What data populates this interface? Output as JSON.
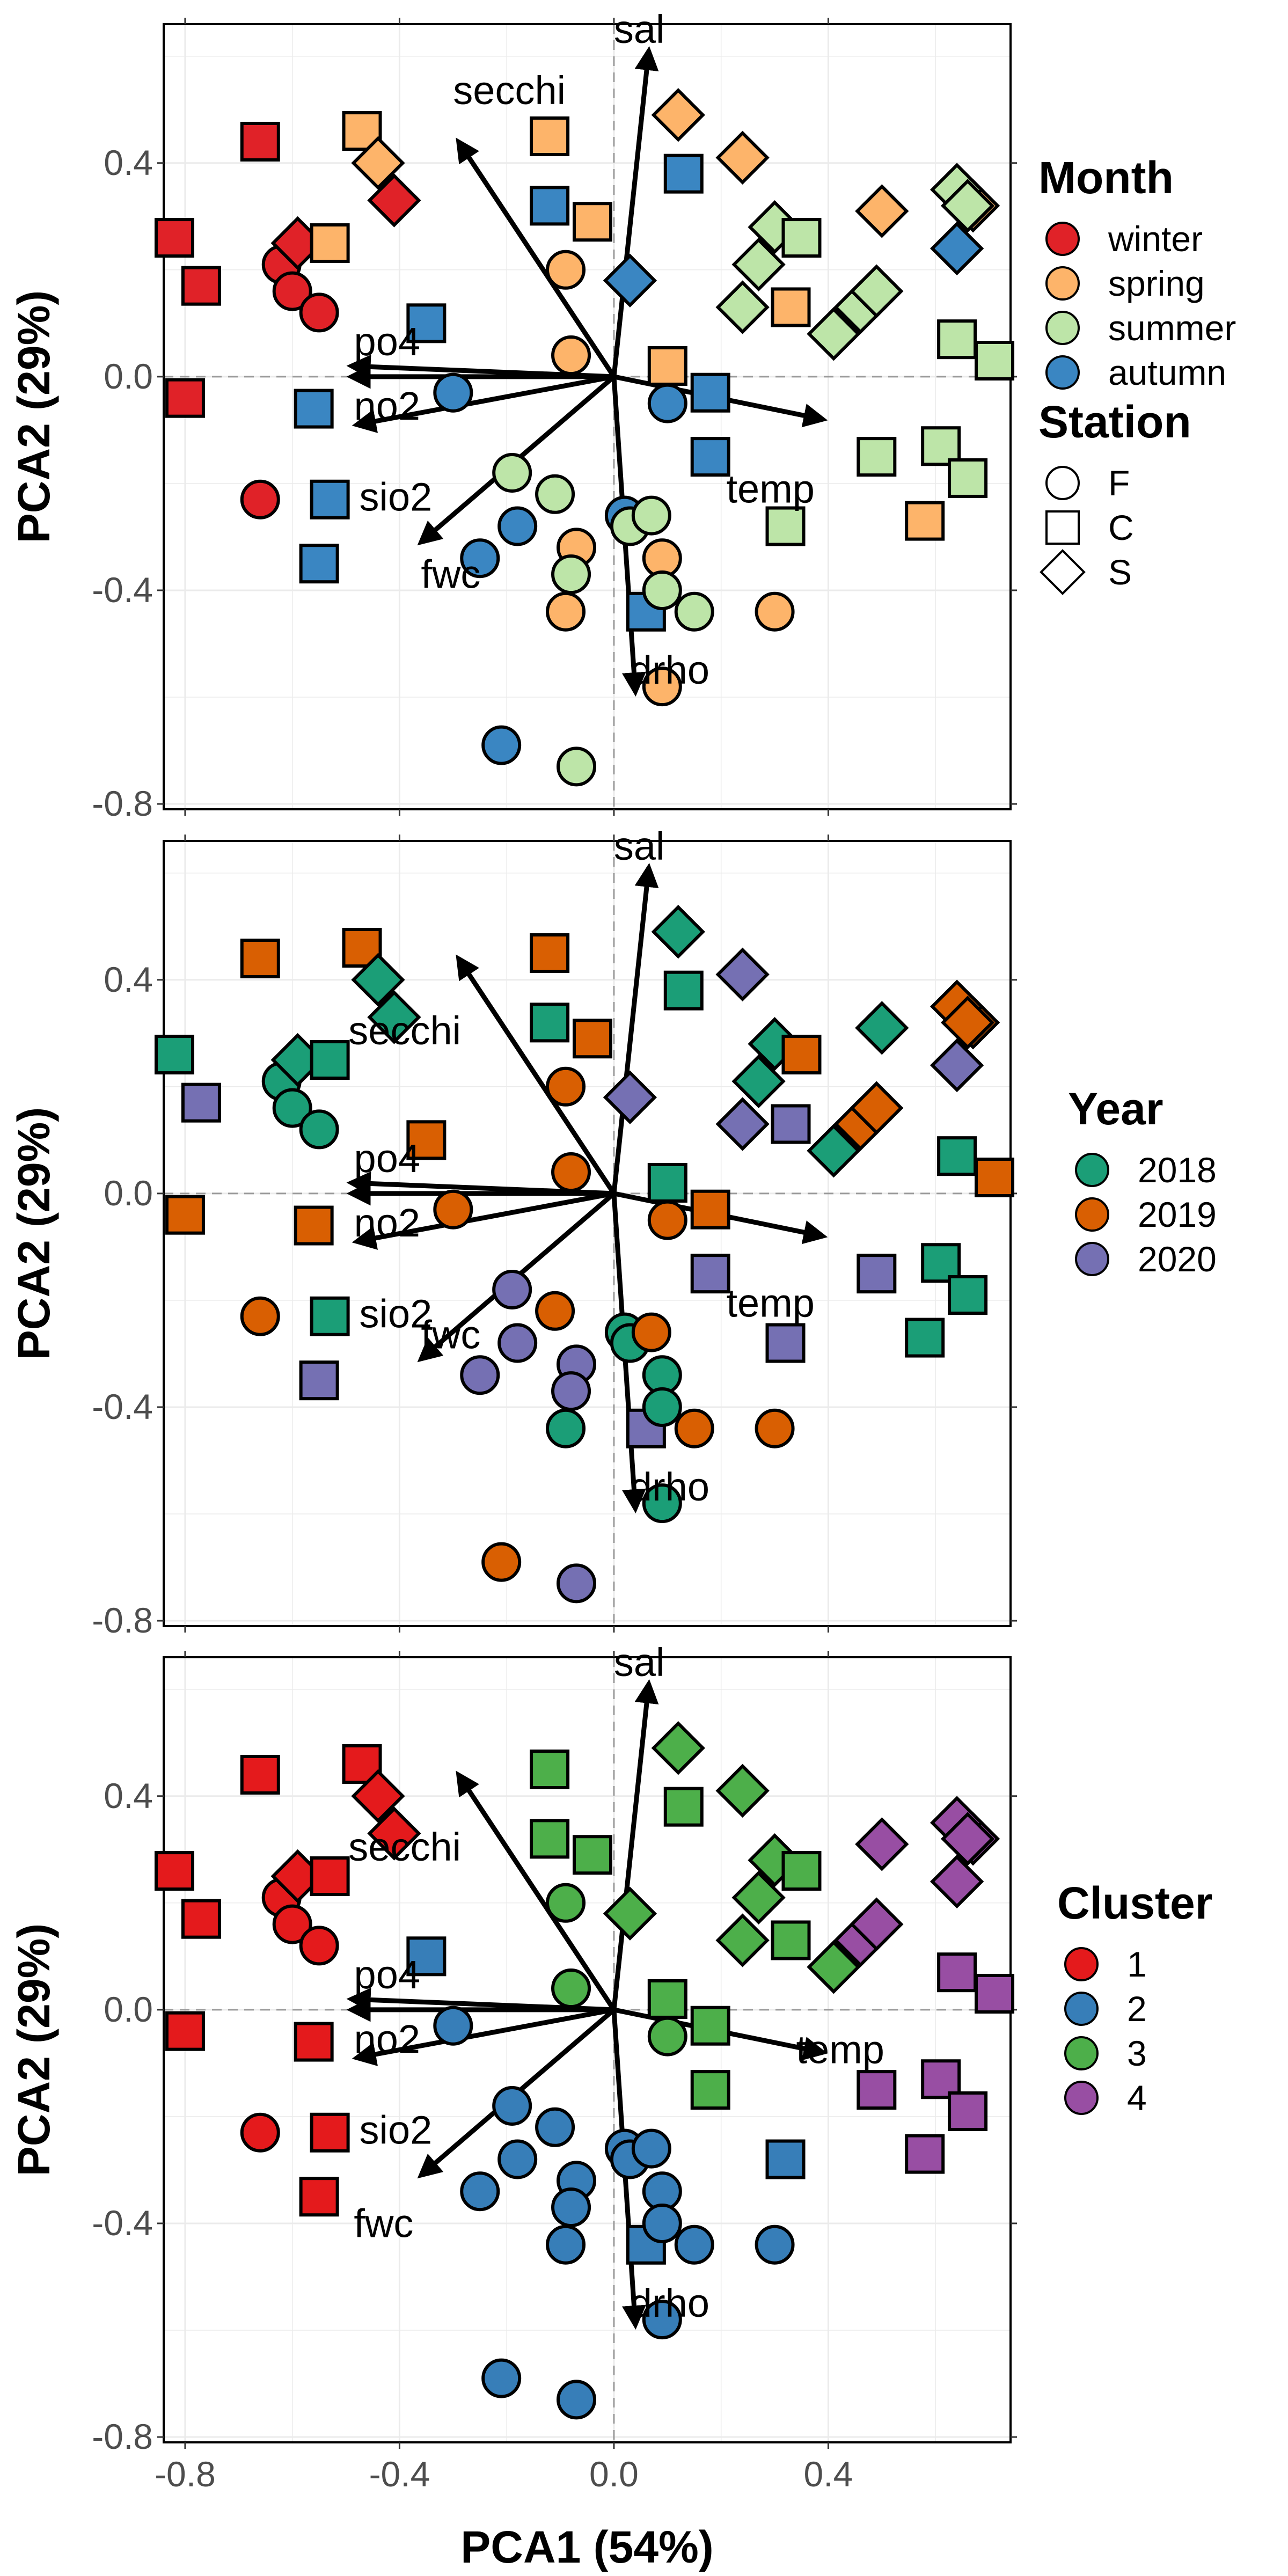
{
  "chart_data": {
    "type": "scatter",
    "xlabel": "PCA1 (54%)",
    "ylabel": "PCA2 (29%)",
    "xlim": [
      -0.84,
      0.74
    ],
    "ylim": [
      -0.81,
      0.66
    ],
    "x_ticks": [
      -0.8,
      -0.4,
      0.0,
      0.4
    ],
    "x_tick_labels": [
      "-0.8",
      "-0.4",
      "0.0",
      "0.4"
    ],
    "y_ticks": [
      -0.8,
      -0.4,
      0.0,
      0.4
    ],
    "y_tick_labels": [
      "-0.8",
      "-0.4",
      "0.0",
      "0.4"
    ],
    "grid": true,
    "reference_lines": [
      0,
      0
    ],
    "stations": [
      "F",
      "C",
      "S"
    ],
    "station_shapes": {
      "F": "circle",
      "C": "square",
      "S": "diamond"
    },
    "loadings": [
      {
        "label": "sal",
        "x": 0.065,
        "y": 0.61
      },
      {
        "label": "secchi",
        "x": -0.29,
        "y": 0.44
      },
      {
        "label": "po4",
        "x": -0.49,
        "y": 0.02
      },
      {
        "label": "no2",
        "x": -0.49,
        "y": 0.0
      },
      {
        "label": "sio2",
        "x": -0.48,
        "y": -0.09
      },
      {
        "label": "fwc",
        "x": -0.36,
        "y": -0.31
      },
      {
        "label": "temp",
        "x": 0.39,
        "y": -0.08
      },
      {
        "label": "drho",
        "x": 0.04,
        "y": -0.59
      }
    ],
    "points": [
      {
        "x": -0.82,
        "y": 0.26,
        "st": "C",
        "m": "winter",
        "yr": "2018",
        "cl": "1"
      },
      {
        "x": -0.66,
        "y": 0.44,
        "st": "C",
        "m": "winter",
        "yr": "2019",
        "cl": "1"
      },
      {
        "x": -0.77,
        "y": 0.17,
        "st": "C",
        "m": "winter",
        "yr": "2020",
        "cl": "1"
      },
      {
        "x": -0.8,
        "y": -0.04,
        "st": "C",
        "m": "winter",
        "yr": "2019",
        "cl": "1"
      },
      {
        "x": -0.62,
        "y": 0.21,
        "st": "F",
        "m": "winter",
        "yr": "2018",
        "cl": "1"
      },
      {
        "x": -0.59,
        "y": 0.25,
        "st": "S",
        "m": "winter",
        "yr": "2018",
        "cl": "1"
      },
      {
        "x": -0.6,
        "y": 0.16,
        "st": "F",
        "m": "winter",
        "yr": "2018",
        "cl": "1"
      },
      {
        "x": -0.55,
        "y": 0.12,
        "st": "F",
        "m": "winter",
        "yr": "2018",
        "cl": "1"
      },
      {
        "x": -0.66,
        "y": -0.23,
        "st": "F",
        "m": "winter",
        "yr": "2019",
        "cl": "1"
      },
      {
        "x": -0.41,
        "y": 0.33,
        "st": "S",
        "m": "winter",
        "yr": "2018",
        "cl": "1"
      },
      {
        "x": -0.47,
        "y": 0.46,
        "st": "C",
        "m": "spring",
        "yr": "2019",
        "cl": "1"
      },
      {
        "x": -0.44,
        "y": 0.4,
        "st": "S",
        "m": "spring",
        "yr": "2018",
        "cl": "1"
      },
      {
        "x": -0.53,
        "y": 0.25,
        "st": "C",
        "m": "spring",
        "yr": "2018",
        "cl": "1"
      },
      {
        "x": -0.12,
        "y": 0.45,
        "st": "C",
        "m": "spring",
        "yr": "2019",
        "cl": "3"
      },
      {
        "x": -0.04,
        "y": 0.29,
        "st": "C",
        "m": "spring",
        "yr": "2019",
        "cl": "3"
      },
      {
        "x": -0.09,
        "y": 0.2,
        "st": "F",
        "m": "spring",
        "yr": "2019",
        "cl": "3"
      },
      {
        "x": -0.08,
        "y": 0.04,
        "st": "F",
        "m": "spring",
        "yr": "2019",
        "cl": "3"
      },
      {
        "x": 0.12,
        "y": 0.49,
        "st": "S",
        "m": "spring",
        "yr": "2018",
        "cl": "3"
      },
      {
        "x": 0.24,
        "y": 0.41,
        "st": "S",
        "m": "spring",
        "yr": "2020",
        "cl": "3"
      },
      {
        "x": 0.1,
        "y": 0.02,
        "st": "C",
        "m": "spring",
        "yr": "2018",
        "cl": "3"
      },
      {
        "x": 0.33,
        "y": 0.13,
        "st": "C",
        "m": "spring",
        "yr": "2020",
        "cl": "3"
      },
      {
        "x": -0.07,
        "y": -0.32,
        "st": "F",
        "m": "spring",
        "yr": "2020",
        "cl": "2"
      },
      {
        "x": 0.09,
        "y": -0.34,
        "st": "F",
        "m": "spring",
        "yr": "2018",
        "cl": "2"
      },
      {
        "x": -0.09,
        "y": -0.44,
        "st": "F",
        "m": "spring",
        "yr": "2018",
        "cl": "2"
      },
      {
        "x": 0.09,
        "y": -0.58,
        "st": "F",
        "m": "spring",
        "yr": "2018",
        "cl": "2"
      },
      {
        "x": 0.3,
        "y": -0.44,
        "st": "F",
        "m": "spring",
        "yr": "2019",
        "cl": "2"
      },
      {
        "x": 0.5,
        "y": 0.31,
        "st": "S",
        "m": "spring",
        "yr": "2018",
        "cl": "4"
      },
      {
        "x": 0.58,
        "y": -0.27,
        "st": "C",
        "m": "spring",
        "yr": "2018",
        "cl": "4"
      },
      {
        "x": 0.67,
        "y": 0.32,
        "st": "S",
        "m": "spring",
        "yr": "2019",
        "cl": "4"
      },
      {
        "x": -0.35,
        "y": 0.1,
        "st": "C",
        "m": "autumn",
        "yr": "2019",
        "cl": "2"
      },
      {
        "x": -0.3,
        "y": -0.03,
        "st": "F",
        "m": "autumn",
        "yr": "2019",
        "cl": "2"
      },
      {
        "x": -0.56,
        "y": -0.06,
        "st": "C",
        "m": "autumn",
        "yr": "2019",
        "cl": "1"
      },
      {
        "x": -0.53,
        "y": -0.23,
        "st": "C",
        "m": "autumn",
        "yr": "2018",
        "cl": "1"
      },
      {
        "x": -0.55,
        "y": -0.35,
        "st": "C",
        "m": "autumn",
        "yr": "2020",
        "cl": "1"
      },
      {
        "x": -0.25,
        "y": -0.34,
        "st": "F",
        "m": "autumn",
        "yr": "2020",
        "cl": "2"
      },
      {
        "x": -0.18,
        "y": -0.28,
        "st": "F",
        "m": "autumn",
        "yr": "2020",
        "cl": "2"
      },
      {
        "x": -0.21,
        "y": -0.69,
        "st": "F",
        "m": "autumn",
        "yr": "2019",
        "cl": "2"
      },
      {
        "x": -0.12,
        "y": 0.32,
        "st": "C",
        "m": "autumn",
        "yr": "2018",
        "cl": "3"
      },
      {
        "x": 0.13,
        "y": 0.38,
        "st": "C",
        "m": "autumn",
        "yr": "2018",
        "cl": "3"
      },
      {
        "x": 0.03,
        "y": 0.18,
        "st": "S",
        "m": "autumn",
        "yr": "2020",
        "cl": "3"
      },
      {
        "x": 0.1,
        "y": -0.05,
        "st": "F",
        "m": "autumn",
        "yr": "2019",
        "cl": "3"
      },
      {
        "x": 0.18,
        "y": -0.03,
        "st": "C",
        "m": "autumn",
        "yr": "2019",
        "cl": "3"
      },
      {
        "x": 0.18,
        "y": -0.15,
        "st": "C",
        "m": "autumn",
        "yr": "2020",
        "cl": "3"
      },
      {
        "x": 0.02,
        "y": -0.26,
        "st": "F",
        "m": "autumn",
        "yr": "2018",
        "cl": "2"
      },
      {
        "x": 0.06,
        "y": -0.44,
        "st": "C",
        "m": "autumn",
        "yr": "2020",
        "cl": "2"
      },
      {
        "x": 0.64,
        "y": 0.24,
        "st": "S",
        "m": "autumn",
        "yr": "2020",
        "cl": "4"
      },
      {
        "x": -0.19,
        "y": -0.18,
        "st": "F",
        "m": "summer",
        "yr": "2020",
        "cl": "2"
      },
      {
        "x": -0.11,
        "y": -0.22,
        "st": "F",
        "m": "summer",
        "yr": "2019",
        "cl": "2"
      },
      {
        "x": -0.08,
        "y": -0.37,
        "st": "F",
        "m": "summer",
        "yr": "2020",
        "cl": "2"
      },
      {
        "x": -0.07,
        "y": -0.73,
        "st": "F",
        "m": "summer",
        "yr": "2020",
        "cl": "2"
      },
      {
        "x": 0.03,
        "y": -0.28,
        "st": "F",
        "m": "summer",
        "yr": "2018",
        "cl": "2"
      },
      {
        "x": 0.07,
        "y": -0.26,
        "st": "F",
        "m": "summer",
        "yr": "2019",
        "cl": "2"
      },
      {
        "x": 0.09,
        "y": -0.4,
        "st": "F",
        "m": "summer",
        "yr": "2018",
        "cl": "2"
      },
      {
        "x": 0.15,
        "y": -0.44,
        "st": "F",
        "m": "summer",
        "yr": "2019",
        "cl": "2"
      },
      {
        "x": 0.24,
        "y": 0.13,
        "st": "S",
        "m": "summer",
        "yr": "2020",
        "cl": "3"
      },
      {
        "x": 0.27,
        "y": 0.21,
        "st": "S",
        "m": "summer",
        "yr": "2018",
        "cl": "3"
      },
      {
        "x": 0.3,
        "y": 0.28,
        "st": "S",
        "m": "summer",
        "yr": "2018",
        "cl": "3"
      },
      {
        "x": 0.35,
        "y": 0.26,
        "st": "C",
        "m": "summer",
        "yr": "2019",
        "cl": "3"
      },
      {
        "x": 0.32,
        "y": -0.28,
        "st": "C",
        "m": "summer",
        "yr": "2020",
        "cl": "2"
      },
      {
        "x": 0.41,
        "y": 0.08,
        "st": "S",
        "m": "summer",
        "yr": "2018",
        "cl": "3"
      },
      {
        "x": 0.46,
        "y": 0.13,
        "st": "S",
        "m": "summer",
        "yr": "2019",
        "cl": "4"
      },
      {
        "x": 0.49,
        "y": 0.16,
        "st": "S",
        "m": "summer",
        "yr": "2019",
        "cl": "4"
      },
      {
        "x": 0.49,
        "y": -0.15,
        "st": "C",
        "m": "summer",
        "yr": "2020",
        "cl": "4"
      },
      {
        "x": 0.61,
        "y": -0.13,
        "st": "C",
        "m": "summer",
        "yr": "2018",
        "cl": "4"
      },
      {
        "x": 0.64,
        "y": 0.07,
        "st": "C",
        "m": "summer",
        "yr": "2018",
        "cl": "4"
      },
      {
        "x": 0.66,
        "y": -0.19,
        "st": "C",
        "m": "summer",
        "yr": "2018",
        "cl": "4"
      },
      {
        "x": 0.64,
        "y": 0.35,
        "st": "S",
        "m": "summer",
        "yr": "2019",
        "cl": "4"
      },
      {
        "x": 0.66,
        "y": 0.32,
        "st": "S",
        "m": "summer",
        "yr": "2019",
        "cl": "4"
      },
      {
        "x": 0.71,
        "y": 0.03,
        "st": "C",
        "m": "summer",
        "yr": "2019",
        "cl": "4"
      }
    ],
    "panels": [
      {
        "color_by": "m",
        "legends": [
          {
            "type": "color",
            "title": "Month",
            "items": [
              {
                "key": "winter",
                "label": "winter",
                "color": "#e02228"
              },
              {
                "key": "spring",
                "label": "spring",
                "color": "#fdb46a"
              },
              {
                "key": "summer",
                "label": "summer",
                "color": "#bde5a8"
              },
              {
                "key": "autumn",
                "label": "autumn",
                "color": "#3a86c2"
              }
            ]
          },
          {
            "type": "shape",
            "title": "Station",
            "items": [
              {
                "key": "F",
                "label": "F"
              },
              {
                "key": "C",
                "label": "C"
              },
              {
                "key": "S",
                "label": "S"
              }
            ]
          }
        ]
      },
      {
        "color_by": "yr",
        "legends": [
          {
            "type": "color",
            "title": "Year",
            "items": [
              {
                "key": "2018",
                "label": "2018",
                "color": "#1b9e77"
              },
              {
                "key": "2019",
                "label": "2019",
                "color": "#d95f02"
              },
              {
                "key": "2020",
                "label": "2020",
                "color": "#7570b3"
              }
            ]
          }
        ]
      },
      {
        "color_by": "cl",
        "legends": [
          {
            "type": "color",
            "title": "Cluster",
            "items": [
              {
                "key": "1",
                "label": "1",
                "color": "#e41a1c"
              },
              {
                "key": "2",
                "label": "2",
                "color": "#377eb8"
              },
              {
                "key": "3",
                "label": "3",
                "color": "#4daf4a"
              },
              {
                "key": "4",
                "label": "4",
                "color": "#984ea3"
              }
            ]
          }
        ]
      }
    ]
  }
}
